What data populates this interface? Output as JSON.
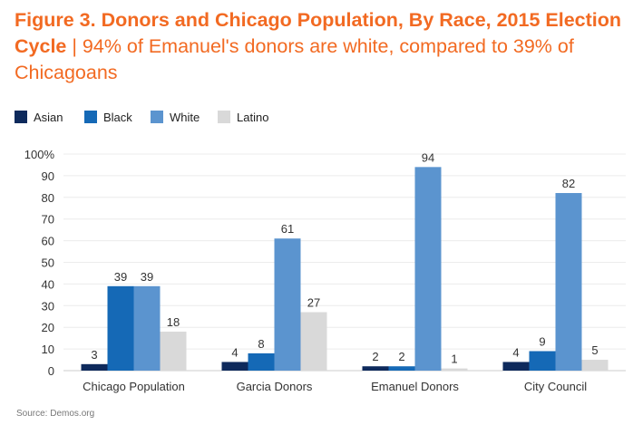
{
  "header": {
    "title_bold": "Figure 3. Donors and Chicago Population, By Race, 2015 Election Cycle",
    "separator": " | ",
    "subtitle": "94% of Emanuel's donors are white, compared to 39% of Chicagoans"
  },
  "legend": [
    {
      "name": "Asian",
      "color": "#0e2a5c"
    },
    {
      "name": "Black",
      "color": "#1569b6"
    },
    {
      "name": "White",
      "color": "#5b94cf"
    },
    {
      "name": "Latino",
      "color": "#d9d9d9"
    }
  ],
  "source": "Source: Demos.org",
  "chart_data": {
    "type": "bar",
    "title": "Figure 3. Donors and Chicago Population, By Race, 2015 Election Cycle",
    "subtitle": "94% of Emanuel's donors are white, compared to 39% of Chicagoans",
    "categories": [
      "Chicago Population",
      "Garcia Donors",
      "Emanuel Donors",
      "City Council"
    ],
    "series": [
      {
        "name": "Asian",
        "color": "#0e2a5c",
        "values": [
          3,
          4,
          2,
          4
        ]
      },
      {
        "name": "Black",
        "color": "#1569b6",
        "values": [
          39,
          8,
          2,
          9
        ]
      },
      {
        "name": "White",
        "color": "#5b94cf",
        "values": [
          39,
          61,
          94,
          82
        ]
      },
      {
        "name": "Latino",
        "color": "#d9d9d9",
        "values": [
          18,
          27,
          1,
          5
        ]
      }
    ],
    "ylim": [
      0,
      100
    ],
    "yticks": [
      "0",
      "10",
      "20",
      "30",
      "40",
      "50",
      "60",
      "70",
      "80",
      "90",
      "100%"
    ],
    "xlabel": "",
    "ylabel": "",
    "grid": true,
    "legend_position": "top-left"
  }
}
